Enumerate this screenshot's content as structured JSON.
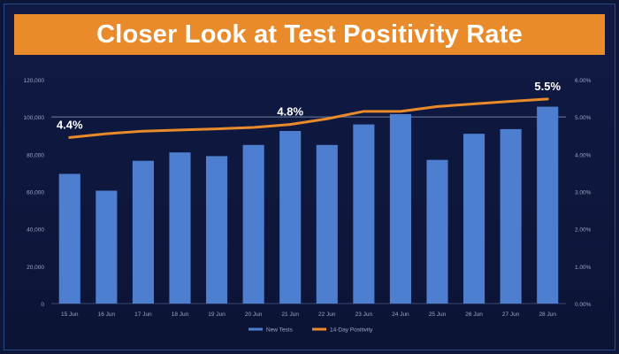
{
  "title": "Closer Look at Test Positivity Rate",
  "colors": {
    "background": "#0d1538",
    "title_bar": "#e98a2b",
    "bar": "#4d7ed0",
    "line": "#e98a2b",
    "axis_text": "#9aa6c8"
  },
  "chart_data": {
    "type": "bar",
    "categories": [
      "15 Jun",
      "16 Jun",
      "17 Jun",
      "18 Jun",
      "19 Jun",
      "20 Jun",
      "21 Jun",
      "22 Jun",
      "23 Jun",
      "24 Jun",
      "25 Jun",
      "26 Jun",
      "27 Jun",
      "28 Jun"
    ],
    "series": [
      {
        "name": "New Tests",
        "type": "bar",
        "axis": "left",
        "values": [
          69500,
          60500,
          76500,
          81000,
          79000,
          85000,
          92500,
          85000,
          96000,
          101500,
          77000,
          91000,
          93500,
          105500
        ]
      },
      {
        "name": "14-Day Positivity",
        "type": "line",
        "axis": "right",
        "values": [
          4.45,
          4.55,
          4.62,
          4.65,
          4.68,
          4.72,
          4.8,
          4.95,
          5.15,
          5.15,
          5.28,
          5.35,
          5.42,
          5.48
        ]
      }
    ],
    "y_left": {
      "range": [
        0,
        120000
      ],
      "ticks": [
        "0",
        "20,000",
        "40,000",
        "60,000",
        "80,000",
        "100,000",
        "120,000"
      ]
    },
    "y_right": {
      "range": [
        0,
        6
      ],
      "ticks": [
        "0.00%",
        "1.00%",
        "2.00%",
        "3.00%",
        "4.00%",
        "5.00%",
        "6.00%"
      ]
    },
    "annotations": [
      {
        "index": 0,
        "text": "4.4%"
      },
      {
        "index": 6,
        "text": "4.8%"
      },
      {
        "index": 13,
        "text": "5.5%"
      }
    ],
    "legend": {
      "position": "bottom",
      "entries": [
        "New Tests",
        "14-Day Positivity"
      ]
    },
    "grid": false,
    "reference_line": 100000
  }
}
